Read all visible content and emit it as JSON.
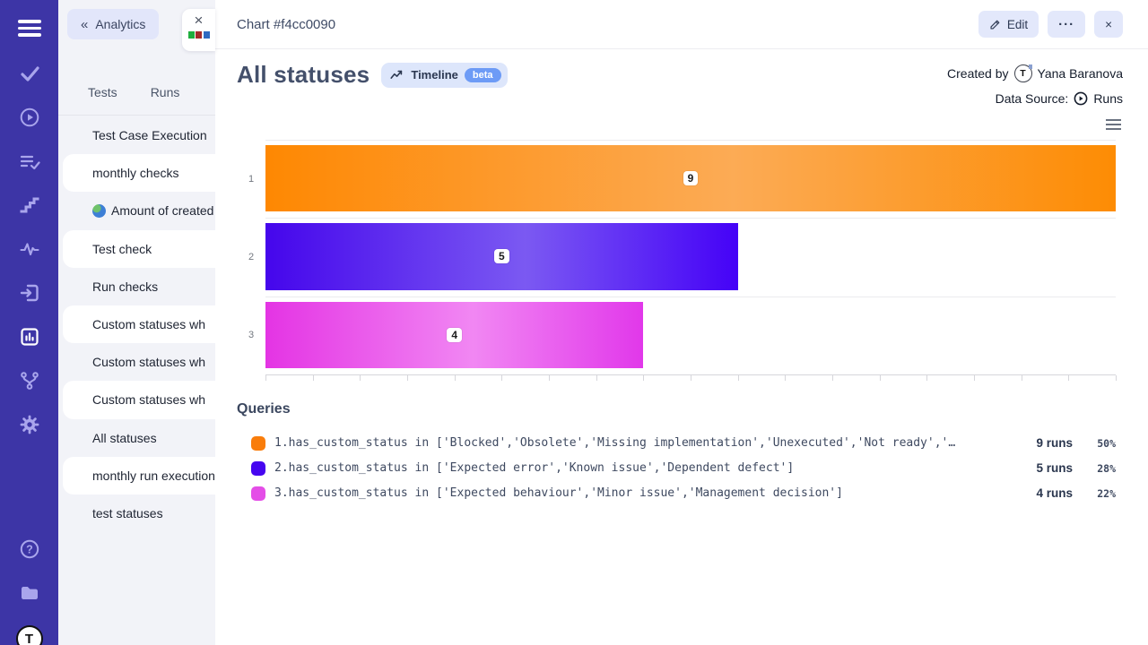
{
  "icons": {
    "rail": [
      "menu-icon",
      "check-icon",
      "play-circle-icon",
      "list-check-icon",
      "steps-icon",
      "pulse-icon",
      "import-icon",
      "bar-chart-icon",
      "branch-icon",
      "gear-icon",
      "help-icon",
      "folder-icon",
      "app-logo"
    ],
    "mini_chart_colors": [
      "#1fae3e",
      "#a52b2b",
      "#2f6ac1"
    ]
  },
  "panel": {
    "back_label": "Analytics",
    "back_chevrons": "«",
    "close_label": "×",
    "tabs": [
      {
        "label": "Tests"
      },
      {
        "label": "Runs"
      }
    ],
    "items": [
      {
        "label": "Test Case Execution"
      },
      {
        "label": "monthly checks"
      },
      {
        "label": "Amount of created"
      },
      {
        "label": "Test check"
      },
      {
        "label": "Run checks"
      },
      {
        "label": "Custom statuses wh"
      },
      {
        "label": "Custom statuses wh"
      },
      {
        "label": "Custom statuses wh"
      },
      {
        "label": "All statuses"
      },
      {
        "label": "monthly run execution"
      },
      {
        "label": "test statuses"
      }
    ]
  },
  "header": {
    "title": "Chart #f4cc0090",
    "edit_label": "Edit",
    "more_label": "···",
    "close_label": "×"
  },
  "chart": {
    "title": "All statuses",
    "timeline_label": "Timeline",
    "beta_label": "beta",
    "created_by_label": "Created by",
    "author": "Yana Baranova",
    "avatar_letter": "T",
    "data_source_label": "Data Source:",
    "data_source_value": "Runs"
  },
  "chart_data": {
    "type": "bar",
    "orientation": "horizontal",
    "title": "All statuses",
    "categories": [
      "1",
      "2",
      "3"
    ],
    "values": [
      9,
      5,
      4
    ],
    "xlim": [
      0,
      9
    ],
    "x_tick_intervals": 18,
    "grid": true,
    "bar_gradients": [
      {
        "start": "#fe8802",
        "mid": "#fcab55",
        "end": "#fd8c04"
      },
      {
        "start": "#4506ec",
        "mid": "#7b59f2",
        "end": "#4502f7"
      },
      {
        "start": "#e434e4",
        "mid": "#f187f3",
        "end": "#e138ea"
      }
    ]
  },
  "queries": {
    "heading": "Queries",
    "rows": [
      {
        "color": "#f97d0b",
        "query": "1.has_custom_status in ['Blocked','Obsolete','Missing implementation','Unexecuted','Not ready','…",
        "runs": "9 runs",
        "percent": "50%"
      },
      {
        "color": "#4606f0",
        "query": "2.has_custom_status in ['Expected error','Known issue','Dependent defect']",
        "runs": "5 runs",
        "percent": "28%"
      },
      {
        "color": "#e44ee7",
        "query": "3.has_custom_status in ['Expected behaviour','Minor issue','Management decision']",
        "runs": "4 runs",
        "percent": "22%"
      }
    ]
  }
}
